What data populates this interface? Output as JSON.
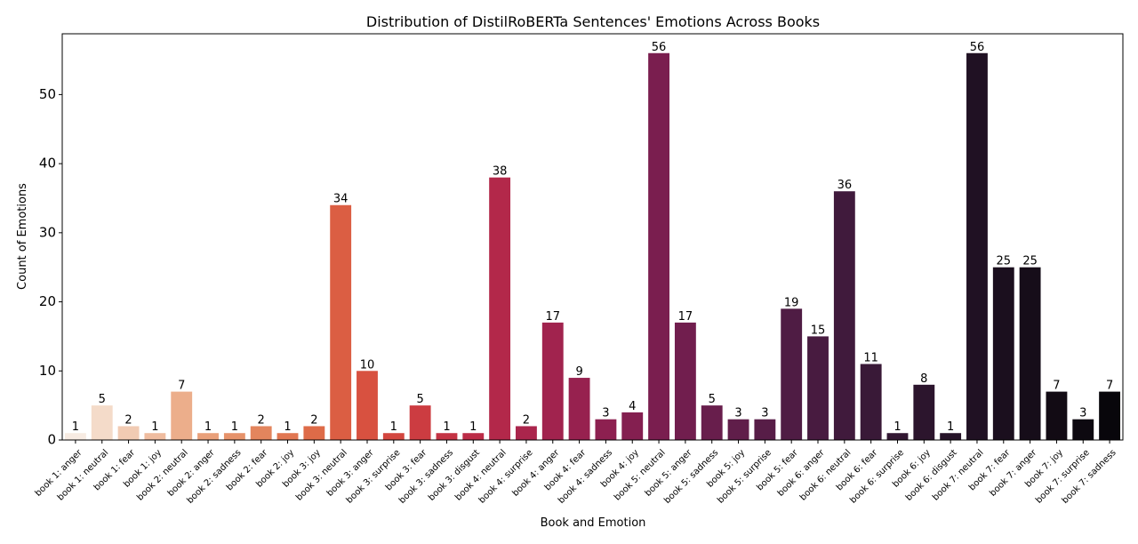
{
  "chart_data": {
    "type": "bar",
    "title": "Distribution of DistilRoBERTa Sentences' Emotions Across Books",
    "xlabel": "Book and Emotion",
    "ylabel": "Count of Emotions",
    "ylim": [
      0,
      58.8
    ],
    "yticks": [
      0,
      10,
      20,
      30,
      40,
      50
    ],
    "grid": false,
    "categories": [
      "book 1: anger",
      "book 1: neutral",
      "book 1: fear",
      "book 1: joy",
      "book 2: neutral",
      "book 2: anger",
      "book 2: sadness",
      "book 2: fear",
      "book 2: joy",
      "book 3: joy",
      "book 3: neutral",
      "book 3: anger",
      "book 3: surprise",
      "book 3: fear",
      "book 3: sadness",
      "book 3: disgust",
      "book 4: neutral",
      "book 4: surprise",
      "book 4: anger",
      "book 4: fear",
      "book 4: sadness",
      "book 4: joy",
      "book 5: neutral",
      "book 5: anger",
      "book 5: sadness",
      "book 5: joy",
      "book 5: surprise",
      "book 5: fear",
      "book 6: anger",
      "book 6: neutral",
      "book 6: fear",
      "book 6: surprise",
      "book 6: joy",
      "book 6: disgust",
      "book 7: neutral",
      "book 7: fear",
      "book 7: anger",
      "book 7: joy",
      "book 7: surprise",
      "book 7: sadness"
    ],
    "values": [
      1,
      5,
      2,
      1,
      7,
      1,
      1,
      2,
      1,
      2,
      34,
      10,
      1,
      5,
      1,
      1,
      38,
      2,
      17,
      9,
      3,
      4,
      56,
      17,
      5,
      3,
      3,
      19,
      15,
      36,
      11,
      1,
      8,
      1,
      56,
      25,
      25,
      7,
      3,
      7
    ],
    "colors": [
      "#f7ebe2",
      "#f4dbc9",
      "#f1cbb3",
      "#efbc9f",
      "#ecae8b",
      "#e9a07a",
      "#e6926a",
      "#e3855d",
      "#e17752",
      "#de6b48",
      "#db5e43",
      "#d85140",
      "#d3463f",
      "#cc3c41",
      "#c43344",
      "#bc2c47",
      "#b3284a",
      "#aa254c",
      "#a1234e",
      "#97214f",
      "#8d2050",
      "#841f50",
      "#7a1e4f",
      "#711e4e",
      "#681e4c",
      "#601e4a",
      "#571d47",
      "#4f1c44",
      "#481b40",
      "#401a3c",
      "#391937",
      "#321732",
      "#2c152d",
      "#261328",
      "#201123",
      "#1b0f1e",
      "#160d19",
      "#120b14",
      "#0d0910",
      "#08060b"
    ]
  }
}
